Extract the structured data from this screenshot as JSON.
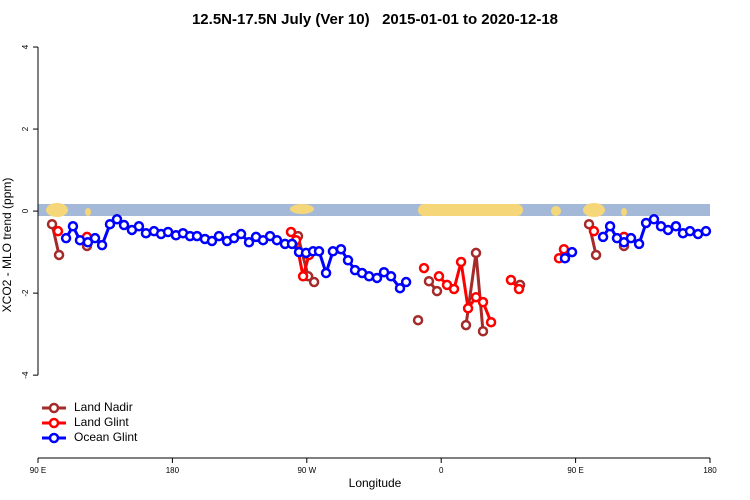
{
  "chart_data": {
    "type": "line",
    "title": "12.5N-17.5N July (Ver 10)   2015-01-01 to 2020-12-18",
    "x_label": "Longitude",
    "y_label": "XCO2 - MLO trend (ppm)",
    "xlim": [
      90,
      540
    ],
    "ylim": [
      -6.02,
      4.22
    ],
    "xticks": [
      {
        "value": 90,
        "label": "90 E"
      },
      {
        "value": 180,
        "label": "180"
      },
      {
        "value": 270,
        "label": "90 W"
      },
      {
        "value": 360,
        "label": "0"
      },
      {
        "value": 450,
        "label": "90 E"
      },
      {
        "value": 540,
        "label": "180"
      }
    ],
    "yticks": [
      4,
      2,
      0,
      -2,
      -4
    ],
    "legend": "bottom-left",
    "series": [
      {
        "name": "Land Nadir",
        "color": "#a52a2a",
        "x": [
          99.4,
          104.1,
          null,
          122.8,
          null,
          264.1,
          270.9,
          274.9,
          null,
          344.5,
          null,
          351.8,
          357.2,
          null,
          376.6,
          383.3,
          388.0,
          null,
          412.8,
          null,
          459.0,
          463.7,
          null,
          482.4
        ],
        "values": [
          -0.32,
          -1.07,
          null,
          -0.85,
          null,
          -0.61,
          -1.59,
          -1.73,
          null,
          -2.66,
          null,
          -1.71,
          -1.95,
          null,
          -2.78,
          -1.02,
          -2.93,
          null,
          -1.8,
          null,
          -0.32,
          -1.07,
          null,
          -0.85
        ]
      },
      {
        "name": "Land Glint",
        "color": "#ff0000",
        "x": [
          103.4,
          null,
          122.8,
          null,
          259.4,
          262.8,
          267.5,
          271.5,
          null,
          348.5,
          null,
          358.5,
          363.9,
          368.6,
          373.3,
          378.0,
          383.3,
          388.0,
          393.4,
          null,
          406.7,
          412.1,
          null,
          438.9,
          442.2,
          null,
          462.3,
          null,
          482.4
        ],
        "values": [
          -0.49,
          null,
          -0.63,
          null,
          -0.51,
          -0.71,
          -1.59,
          -1.07,
          null,
          -1.39,
          null,
          -1.59,
          -1.8,
          -1.9,
          -1.24,
          -2.37,
          -2.1,
          -2.22,
          -2.71,
          null,
          -1.68,
          -1.9,
          null,
          -1.15,
          -0.93,
          null,
          -0.49,
          null,
          -0.63
        ]
      },
      {
        "name": "Ocean Glint",
        "color": "#0000ff",
        "x": [
          108.8,
          113.4,
          118.1,
          123.4,
          128.2,
          132.9,
          138.2,
          142.9,
          147.6,
          152.9,
          157.6,
          162.3,
          167.7,
          172.4,
          177.1,
          182.4,
          187.1,
          191.8,
          196.5,
          201.8,
          206.5,
          211.2,
          216.6,
          221.3,
          226.0,
          231.3,
          236.0,
          240.7,
          245.4,
          250.0,
          255.4,
          260.1,
          264.8,
          269.5,
          274.2,
          278.2,
          282.9,
          287.5,
          292.9,
          297.6,
          302.3,
          307.0,
          311.7,
          317.0,
          321.7,
          326.4,
          332.4,
          336.5,
          null,
          442.9,
          447.6,
          null,
          468.4,
          473.1,
          477.7,
          482.4,
          487.1,
          492.5,
          497.2,
          502.5,
          507.2,
          511.9,
          517.2,
          521.9,
          526.6,
          532.0,
          537.3
        ],
        "values": [
          -0.66,
          -0.37,
          -0.71,
          -0.76,
          -0.66,
          -0.83,
          -0.32,
          -0.2,
          -0.34,
          -0.46,
          -0.37,
          -0.54,
          -0.49,
          -0.56,
          -0.51,
          -0.59,
          -0.54,
          -0.61,
          -0.61,
          -0.68,
          -0.73,
          -0.61,
          -0.73,
          -0.66,
          -0.56,
          -0.76,
          -0.63,
          -0.71,
          -0.61,
          -0.71,
          -0.8,
          -0.8,
          -1.0,
          -1.02,
          -0.98,
          -0.98,
          -1.51,
          -0.98,
          -0.93,
          -1.2,
          -1.44,
          -1.51,
          -1.59,
          -1.63,
          -1.49,
          -1.59,
          -1.88,
          -1.73,
          null,
          -1.15,
          -1.0,
          null,
          -0.63,
          -0.37,
          -0.66,
          -0.76,
          -0.66,
          -0.8,
          -0.29,
          -0.2,
          -0.37,
          -0.46,
          -0.37,
          -0.54,
          -0.49,
          -0.56,
          -0.49
        ]
      }
    ]
  }
}
